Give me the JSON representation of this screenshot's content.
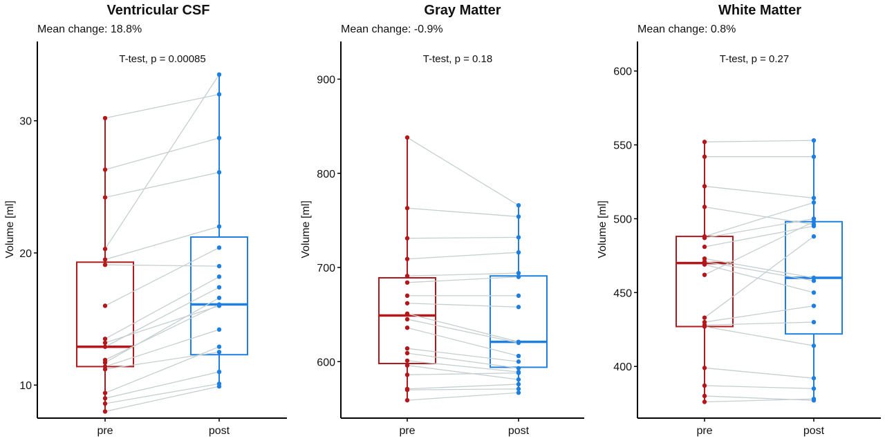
{
  "colors": {
    "pre": "#b2181b",
    "post": "#1e7fe0",
    "pair_line": "#c5cfcf",
    "axis": "#000000",
    "text": "#111111"
  },
  "y_axis_label": "Volume [ml]",
  "chart_data": [
    {
      "type": "boxplot",
      "title": "Ventricular CSF",
      "subtitle": "Mean change: 18.8%",
      "annotation": "T-test, p = 0.00085",
      "xlabel": "",
      "ylabel": "Volume [ml]",
      "categories": [
        "pre",
        "post"
      ],
      "ylim": [
        7.5,
        36
      ],
      "yticks": [
        10,
        20,
        30
      ],
      "box": {
        "pre": {
          "q1": 11.4,
          "median": 12.9,
          "q3": 19.3,
          "whisker_low": 8.0,
          "whisker_high": 30.2
        },
        "post": {
          "q1": 12.3,
          "median": 16.1,
          "q3": 21.2,
          "whisker_low": 9.9,
          "whisker_high": 33.5
        }
      },
      "pairs": [
        [
          30.2,
          32.0
        ],
        [
          26.3,
          28.7
        ],
        [
          24.2,
          26.1
        ],
        [
          20.3,
          33.5
        ],
        [
          19.5,
          22.0
        ],
        [
          19.1,
          19.0
        ],
        [
          16.0,
          20.4
        ],
        [
          13.5,
          18.2
        ],
        [
          13.2,
          16.0
        ],
        [
          12.9,
          17.4
        ],
        [
          11.9,
          16.1
        ],
        [
          11.7,
          16.6
        ],
        [
          11.4,
          14.2
        ],
        [
          11.2,
          12.5
        ],
        [
          9.4,
          12.9
        ],
        [
          9.0,
          11.0
        ],
        [
          8.6,
          10.1
        ],
        [
          8.0,
          9.9
        ]
      ]
    },
    {
      "type": "boxplot",
      "title": "Gray Matter",
      "subtitle": "Mean change: -0.9%",
      "annotation": "T-test, p = 0.18",
      "xlabel": "",
      "ylabel": "Volume [ml]",
      "categories": [
        "pre",
        "post"
      ],
      "ylim": [
        540,
        940
      ],
      "yticks": [
        600,
        700,
        800,
        900
      ],
      "box": {
        "pre": {
          "q1": 598,
          "median": 649,
          "q3": 689,
          "whisker_low": 558,
          "whisker_high": 838
        },
        "post": {
          "q1": 594,
          "median": 621,
          "q3": 691,
          "whisker_low": 567,
          "whisker_high": 766
        }
      },
      "pairs": [
        [
          838,
          766
        ],
        [
          763,
          754
        ],
        [
          731,
          732
        ],
        [
          709,
          716
        ],
        [
          691,
          694
        ],
        [
          684,
          690
        ],
        [
          670,
          670
        ],
        [
          662,
          658
        ],
        [
          651,
          621
        ],
        [
          645,
          620
        ],
        [
          636,
          606
        ],
        [
          614,
          600
        ],
        [
          609,
          593
        ],
        [
          601,
          589
        ],
        [
          596,
          581
        ],
        [
          586,
          588
        ],
        [
          571,
          576
        ],
        [
          570,
          571
        ],
        [
          559,
          567
        ]
      ]
    },
    {
      "type": "boxplot",
      "title": "White Matter",
      "subtitle": "Mean change: 0.8%",
      "annotation": "T-test, p = 0.27",
      "xlabel": "",
      "ylabel": "Volume [ml]",
      "categories": [
        "pre",
        "post"
      ],
      "ylim": [
        365,
        620
      ],
      "yticks": [
        400,
        450,
        500,
        550,
        600
      ],
      "box": {
        "pre": {
          "q1": 427,
          "median": 470,
          "q3": 488,
          "whisker_low": 376,
          "whisker_high": 552
        },
        "post": {
          "q1": 422,
          "median": 460,
          "q3": 498,
          "whisker_low": 377,
          "whisker_high": 553
        }
      },
      "pairs": [
        [
          552,
          553
        ],
        [
          542,
          542
        ],
        [
          522,
          514
        ],
        [
          508,
          496
        ],
        [
          488,
          511
        ],
        [
          487,
          500
        ],
        [
          481,
          495
        ],
        [
          473,
          460
        ],
        [
          471,
          458
        ],
        [
          469,
          450
        ],
        [
          462,
          498
        ],
        [
          433,
          488
        ],
        [
          430,
          441
        ],
        [
          428,
          430
        ],
        [
          427,
          414
        ],
        [
          399,
          392
        ],
        [
          387,
          385
        ],
        [
          380,
          377
        ],
        [
          376,
          378
        ]
      ]
    }
  ]
}
